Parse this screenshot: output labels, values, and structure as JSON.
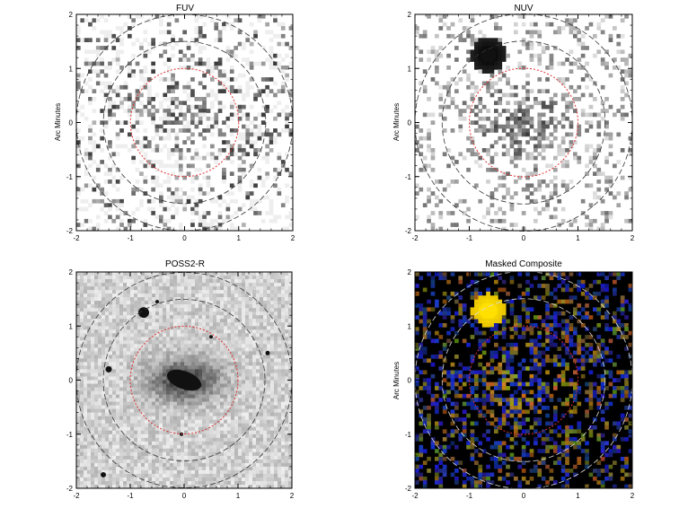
{
  "figure": {
    "axis_range": [
      -2,
      2
    ],
    "ticks": [
      "-2",
      "-1",
      "0",
      "1",
      "2"
    ],
    "inner_aperture_radius": 1.0,
    "outer_ring_radii": [
      1.5,
      2.0
    ],
    "colors": {
      "inner_aperture": "#e03030",
      "outer_ring_dark": "#333333",
      "outer_ring_light": "#dddddd"
    },
    "panels": [
      {
        "id": "fuv",
        "title": "FUV",
        "ylabel": "Arc Minutes",
        "style": "sparse-uv"
      },
      {
        "id": "nuv",
        "title": "NUV",
        "ylabel": "Arc Minutes",
        "style": "uv-with-star"
      },
      {
        "id": "poss2r",
        "title": "POSS2-R",
        "ylabel": "",
        "style": "optical"
      },
      {
        "id": "composite",
        "title": "Masked Composite",
        "ylabel": "Arc Minutes",
        "style": "color-composite"
      }
    ]
  }
}
